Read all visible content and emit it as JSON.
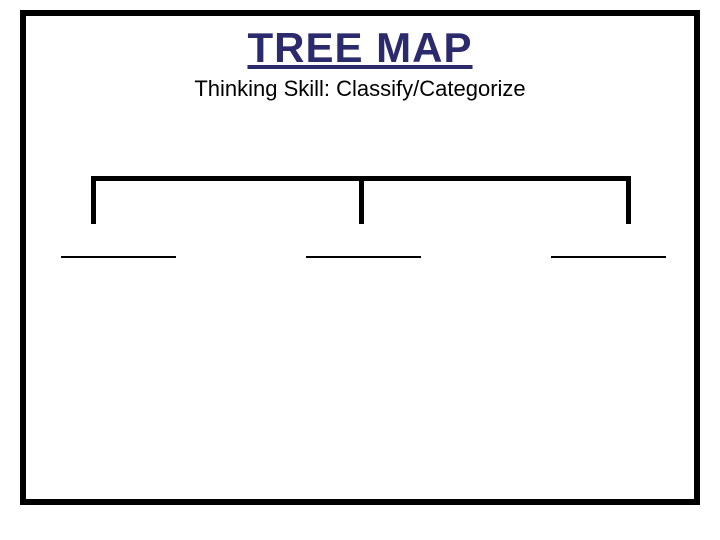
{
  "diagram": {
    "type": "tree",
    "title": "TREE MAP",
    "subtitle": "Thinking Skill:  Classify/Categorize",
    "title_color": "#2a2a6d",
    "title_fontsize": 42,
    "subtitle_fontsize": 22,
    "frame": {
      "border_color": "#000000",
      "border_width": 6,
      "background": "#ffffff"
    },
    "connector": {
      "stroke_color": "#000000",
      "stroke_width": 5,
      "branch_count": 3
    },
    "branches": [
      {
        "label": "",
        "underline_width": 115
      },
      {
        "label": "",
        "underline_width": 115
      },
      {
        "label": "",
        "underline_width": 115
      }
    ]
  }
}
